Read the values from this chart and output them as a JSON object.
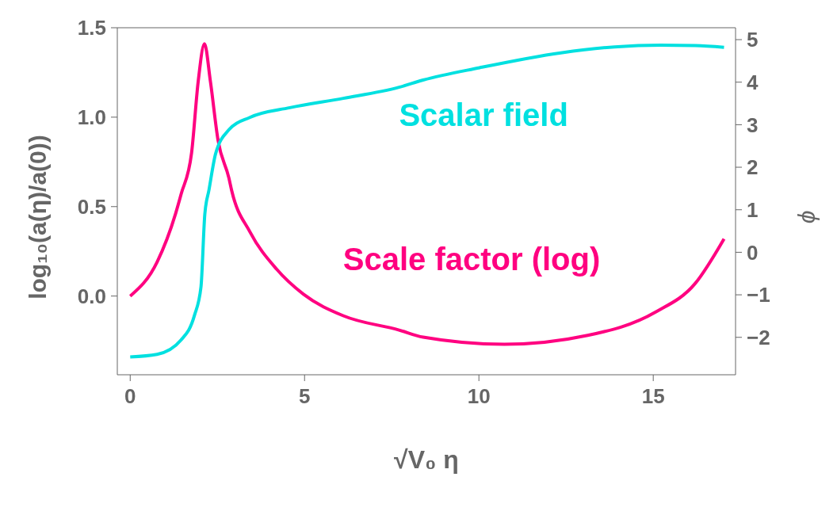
{
  "chart_data": {
    "type": "line",
    "xlabel": "√V₀ η",
    "ylabel": "log₁₀(a(η)/a(0))",
    "y2label": "ϕ",
    "xlim": [
      -0.37,
      17.36
    ],
    "xticks": [
      0,
      5,
      10,
      15
    ],
    "ylim": [
      -0.44,
      1.5
    ],
    "yticks": [
      {
        "value": 0,
        "label": "0.0"
      },
      0.5,
      {
        "value": 1,
        "label": "1.0"
      },
      1.5
    ],
    "y2lim": [
      -2.88,
      5.28
    ],
    "y2ticks": [
      -2,
      -1,
      0,
      1,
      2,
      3,
      4,
      5
    ],
    "grid": false,
    "legend": false,
    "marker": "none",
    "line_style": "solid",
    "series": [
      {
        "name": "Scale factor (log)",
        "color": "#ff0080",
        "axis": "y",
        "x": [
          0,
          0.77,
          1.3,
          1.46,
          1.76,
          1.95,
          2.13,
          2.3,
          2.52,
          2.83,
          2.91,
          3.43,
          4.2,
          4.97,
          6.11,
          7.71,
          8.4,
          10.73,
          13.12,
          15.06,
          16.2,
          17.03
        ],
        "values": [
          0,
          0.19,
          0.46,
          0.57,
          0.8,
          1.2,
          1.41,
          1.2,
          0.87,
          0.66,
          0.59,
          0.36,
          0.15,
          0.01,
          -0.11,
          -0.19,
          -0.23,
          -0.27,
          -0.22,
          -0.09,
          0.07,
          0.32
        ]
      },
      {
        "name": "Scalar field",
        "color": "#00e0e0",
        "axis": "y2",
        "x": [
          0,
          0.77,
          1.46,
          1.84,
          2.03,
          2.14,
          2.26,
          2.45,
          2.83,
          3.43,
          4.58,
          6.11,
          7.71,
          8.4,
          10.02,
          12.35,
          13.89,
          15.21,
          16.21,
          17.03
        ],
        "values": [
          -2.46,
          -2.4,
          -2.06,
          -1.49,
          -0.81,
          0.9,
          1.47,
          2.32,
          2.88,
          3.17,
          3.4,
          3.62,
          3.88,
          4.05,
          4.34,
          4.69,
          4.83,
          4.87,
          4.86,
          4.82
        ]
      }
    ]
  }
}
